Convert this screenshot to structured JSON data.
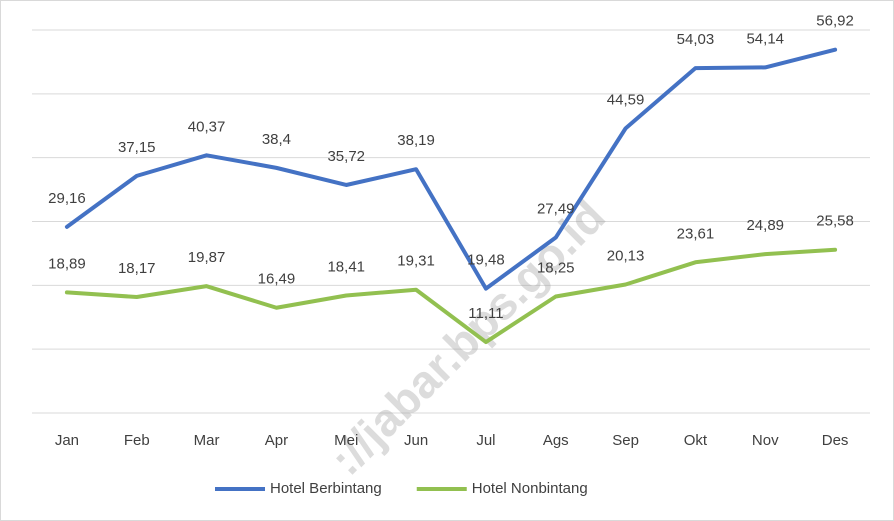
{
  "chart_data": {
    "type": "line",
    "categories": [
      "Jan",
      "Feb",
      "Mar",
      "Apr",
      "Mei",
      "Jun",
      "Jul",
      "Ags",
      "Sep",
      "Okt",
      "Nov",
      "Des"
    ],
    "series": [
      {
        "name": "Hotel Berbintang",
        "color": "#4472c4",
        "values": [
          29.16,
          37.15,
          40.37,
          38.4,
          35.72,
          38.19,
          19.48,
          27.49,
          44.59,
          54.03,
          54.14,
          56.92
        ],
        "value_labels": [
          "29,16",
          "37,15",
          "40,37",
          "38,4",
          "35,72",
          "38,19",
          "19,48",
          "27,49",
          "44,59",
          "54,03",
          "54,14",
          "56,92"
        ]
      },
      {
        "name": "Hotel Nonbintang",
        "color": "#92c050",
        "values": [
          18.89,
          18.17,
          19.87,
          16.49,
          18.41,
          19.31,
          11.11,
          18.25,
          20.13,
          23.61,
          24.89,
          25.58
        ],
        "value_labels": [
          "18,89",
          "18,17",
          "19,87",
          "16,49",
          "18,41",
          "19,31",
          "11,11",
          "18,25",
          "20,13",
          "23,61",
          "24,89",
          "25,58"
        ]
      }
    ],
    "ylim": [
      0,
      60
    ],
    "yticks": [
      0,
      10,
      20,
      30,
      40,
      50,
      60
    ],
    "grid": true,
    "legend": "bottom",
    "watermark": "://jabar.bps.go.id"
  }
}
